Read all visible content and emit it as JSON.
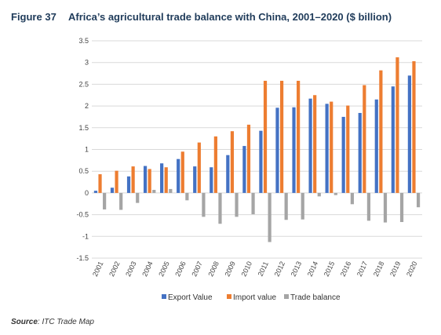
{
  "header": {
    "figure_label": "Figure 37",
    "title": "Africa’s agricultural trade balance with China, 2001–2020 ($ billion)"
  },
  "source": {
    "label": "Source",
    "text": ": ITC Trade Map"
  },
  "colors": {
    "export": "#4472c4",
    "import": "#ed7d31",
    "balance": "#a5a5a5",
    "grid": "#d9d9d9"
  },
  "chart_data": {
    "type": "bar",
    "categories": [
      "2001",
      "2002",
      "2003",
      "2004",
      "2005",
      "2006",
      "2007",
      "2008",
      "2009",
      "2010",
      "2011",
      "2012",
      "2013",
      "2014",
      "2015",
      "2016",
      "2017",
      "2018",
      "2019",
      "2020"
    ],
    "series": [
      {
        "name": "Export Value",
        "values": [
          0.05,
          0.12,
          0.38,
          0.62,
          0.68,
          0.78,
          0.61,
          0.59,
          0.87,
          1.08,
          1.43,
          1.96,
          1.97,
          2.17,
          2.05,
          1.75,
          1.84,
          2.15,
          2.45,
          2.7
        ]
      },
      {
        "name": "Import value",
        "values": [
          0.43,
          0.51,
          0.61,
          0.55,
          0.59,
          0.95,
          1.16,
          1.3,
          1.42,
          1.57,
          2.58,
          2.58,
          2.58,
          2.25,
          2.1,
          2.01,
          2.48,
          2.82,
          3.12,
          3.03
        ]
      },
      {
        "name": "Trade balance",
        "values": [
          -0.38,
          -0.39,
          -0.23,
          0.07,
          0.09,
          -0.17,
          -0.55,
          -0.71,
          -0.55,
          -0.49,
          -1.13,
          -0.62,
          -0.61,
          -0.08,
          -0.05,
          -0.26,
          -0.64,
          -0.68,
          -0.67,
          -0.33
        ]
      }
    ],
    "yticks": [
      "3.5",
      "3",
      "2.5",
      "2",
      "1.5",
      "1",
      "0.5",
      "0",
      "-0.5",
      "-1",
      "-1.5"
    ],
    "ylim": [
      -1.5,
      3.5
    ],
    "grid": true,
    "legend": "bottom"
  }
}
